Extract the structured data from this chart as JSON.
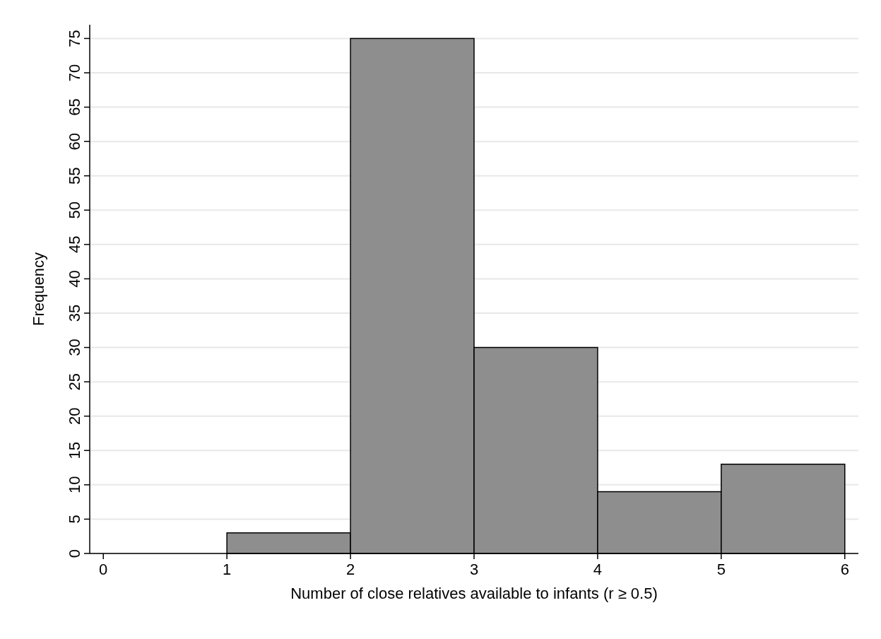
{
  "chart_data": {
    "type": "histogram",
    "xlabel": "Number of close relatives available to infants (r ≥ 0.5)",
    "ylabel": "Frequency",
    "bins": [
      0,
      1,
      2,
      3,
      4,
      5,
      6
    ],
    "values": [
      0,
      3,
      75,
      30,
      9,
      13
    ],
    "color": "#8e8e8e",
    "xlim": [
      -0.11,
      6.11
    ],
    "xticks": [
      0,
      1,
      2,
      3,
      4,
      5,
      6
    ],
    "ylim": [
      0,
      77
    ],
    "yticks": [
      0,
      5,
      10,
      15,
      20,
      25,
      30,
      35,
      40,
      45,
      50,
      55,
      60,
      65,
      70,
      75
    ],
    "grid": "y"
  }
}
